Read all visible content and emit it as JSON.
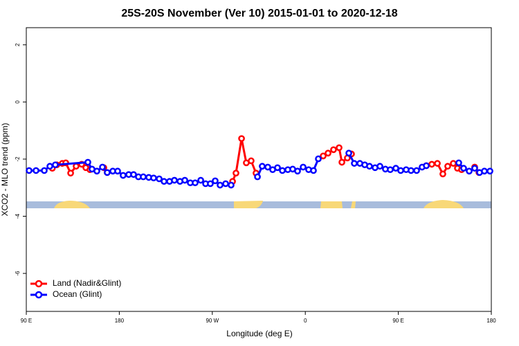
{
  "chart_data": {
    "type": "line",
    "title": "25S-20S November (Ver 10)   2015-01-01 to 2020-12-18",
    "x_label": "Longitude (deg E)",
    "y_label": "XCO2 - MLO trend (ppm)",
    "xlim": [
      -270,
      180
    ],
    "xticks": [
      {
        "value": -270,
        "label": "90 E"
      },
      {
        "value": -180,
        "label": "180"
      },
      {
        "value": -90,
        "label": "90 W"
      },
      0,
      {
        "value": 90,
        "label": "90 E"
      },
      180
    ],
    "ylim": [
      -7.33,
      2.6
    ],
    "yticks": [
      -6,
      -4,
      -2,
      0,
      2
    ],
    "legend": "bottom-left",
    "series": [
      {
        "name": "Land (Nadir&Glint)",
        "color": "#ff0000",
        "x": [
          -244.8,
          -240.5,
          -235.2,
          -231.8,
          -227.1,
          -221.8,
          -216.4,
          -212.4,
          -208.4,
          null,
          -195.0,
          -191.7,
          null,
          -70.4,
          -67.1,
          -61.7,
          -57.1,
          -52.4,
          -47.7,
          null,
          17.3,
          22.0,
          27.3,
          32.7,
          35.4,
          40.7,
          44.7,
          null,
          117.1,
          122.4,
          127.8,
          133.1,
          137.8,
          143.2,
          147.2,
          151.2,
          null,
          163.9,
          168.0
        ],
        "values": [
          -2.32,
          -2.2,
          -2.15,
          -2.13,
          -2.49,
          -2.25,
          -2.18,
          -2.3,
          -2.37,
          null,
          -2.3,
          -2.47,
          null,
          -2.78,
          -2.49,
          -1.28,
          -2.13,
          -2.06,
          -2.49,
          null,
          -1.89,
          -1.79,
          -1.67,
          -1.6,
          -2.11,
          -1.96,
          -1.82,
          null,
          -2.23,
          -2.18,
          -2.15,
          -2.52,
          -2.25,
          -2.15,
          -2.32,
          -2.37,
          null,
          -2.28,
          -2.47
        ]
      },
      {
        "name": "Ocean (Glint)",
        "color": "#0000ff",
        "x": [
          -267.3,
          -260.6,
          -252.6,
          -247.2,
          -241.9,
          -210.4,
          -206.4,
          -201.7,
          -196.3,
          -191.7,
          -186.3,
          -181.6,
          -176.3,
          -170.9,
          -166.2,
          -161.5,
          -156.8,
          -151.5,
          -146.8,
          -141.4,
          -136.7,
          -131.4,
          -126.7,
          -121.3,
          -116.6,
          -111.3,
          -106.6,
          -101.2,
          -96.5,
          -91.9,
          -87.2,
          -82.5,
          -77.1,
          -71.8,
          null,
          -46.3,
          -41.7,
          -36.3,
          -31.6,
          -26.9,
          -22.2,
          -16.9,
          -12.2,
          -7.5,
          -2.1,
          3.2,
          7.9,
          12.6,
          null,
          42.1,
          47.4,
          52.8,
          57.5,
          62.1,
          67.5,
          72.2,
          77.5,
          82.2,
          87.6,
          92.3,
          97.6,
          102.3,
          107.7,
          113.0,
          117.1,
          null,
          148.5,
          153.2,
          158.6,
          163.9,
          168.6,
          173.3,
          178.7
        ],
        "values": [
          -2.4,
          -2.4,
          -2.4,
          -2.25,
          -2.2,
          -2.11,
          -2.35,
          -2.42,
          -2.28,
          -2.47,
          -2.42,
          -2.42,
          -2.57,
          -2.54,
          -2.54,
          -2.62,
          -2.62,
          -2.64,
          -2.66,
          -2.69,
          -2.78,
          -2.78,
          -2.74,
          -2.78,
          -2.74,
          -2.83,
          -2.83,
          -2.74,
          -2.86,
          -2.86,
          -2.76,
          -2.91,
          -2.86,
          -2.91,
          null,
          -2.62,
          -2.25,
          -2.28,
          -2.37,
          -2.3,
          -2.4,
          -2.37,
          -2.35,
          -2.42,
          -2.28,
          -2.37,
          -2.4,
          -1.99,
          null,
          -1.79,
          -2.15,
          -2.15,
          -2.2,
          -2.25,
          -2.3,
          -2.25,
          -2.35,
          -2.37,
          -2.32,
          -2.4,
          -2.37,
          -2.4,
          -2.4,
          -2.28,
          -2.23,
          null,
          -2.13,
          -2.32,
          -2.42,
          -2.32,
          -2.47,
          -2.42,
          -2.42
        ]
      }
    ]
  }
}
